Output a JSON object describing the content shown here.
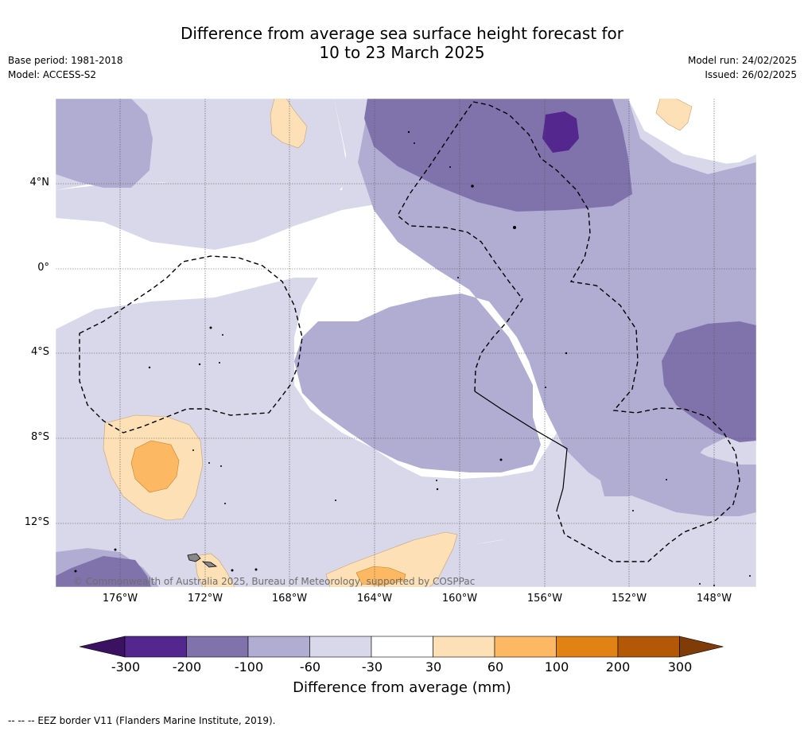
{
  "title_line1": "Difference from average sea surface height forecast for",
  "title_line2": "10 to 23 March 2025",
  "base_period": "Base period: 1981-2018",
  "model": "Model: ACCESS-S2",
  "model_run": "Model run: 24/02/2025",
  "issued": "Issued: 26/02/2025",
  "lat_labels": [
    "4°N",
    "0°",
    "4°S",
    "8°S",
    "12°S"
  ],
  "lon_labels": [
    "176°W",
    "172°W",
    "168°W",
    "164°W",
    "160°W",
    "156°W",
    "152°W",
    "148°W"
  ],
  "copyright": "© Commonwealth of Australia 2025, Bureau of Meteorology, supported by COSPPac",
  "colorbar": {
    "ticks": [
      "-300",
      "-200",
      "-100",
      "-60",
      "-30",
      "30",
      "60",
      "100",
      "200",
      "300"
    ],
    "label": "Difference from average (mm)",
    "colors": [
      "#3b1261",
      "#54278f",
      "#8073ac",
      "#b1acd2",
      "#d8d8ea",
      "#ffffff",
      "#fee0b6",
      "#fdb863",
      "#e08214",
      "#b35806",
      "#7f3b08"
    ]
  },
  "footer": "--  --  -- EEZ border V11 (Flanders Marine Institute, 2019)."
}
